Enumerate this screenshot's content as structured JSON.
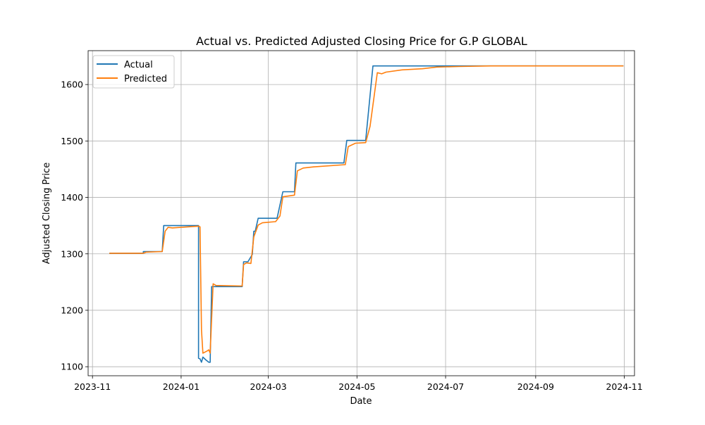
{
  "chart_data": {
    "type": "line",
    "title": "Actual vs. Predicted Adjusted Closing Price for G.P GLOBAL",
    "xlabel": "Date",
    "ylabel": "Adjusted Closing Price",
    "x_is_date": true,
    "xlim": [
      "2023-10-29",
      "2024-11-08"
    ],
    "ylim": [
      1084,
      1660
    ],
    "x_ticks": [
      {
        "value": "2023-11-01",
        "label": "2023-11"
      },
      {
        "value": "2024-01-01",
        "label": "2024-01"
      },
      {
        "value": "2024-03-01",
        "label": "2024-03"
      },
      {
        "value": "2024-05-01",
        "label": "2024-05"
      },
      {
        "value": "2024-07-01",
        "label": "2024-07"
      },
      {
        "value": "2024-09-01",
        "label": "2024-09"
      },
      {
        "value": "2024-11-01",
        "label": "2024-11"
      }
    ],
    "y_ticks": [
      1100,
      1200,
      1300,
      1400,
      1500,
      1600
    ],
    "grid": true,
    "legend_position": "top-left",
    "series": [
      {
        "name": "Actual",
        "color": "#1f77b4",
        "points": [
          [
            "2023-11-13",
            1301
          ],
          [
            "2023-12-06",
            1301
          ],
          [
            "2023-12-06",
            1304
          ],
          [
            "2023-12-19",
            1304
          ],
          [
            "2023-12-20",
            1350
          ],
          [
            "2024-01-13",
            1350
          ],
          [
            "2024-01-13",
            1115
          ],
          [
            "2024-01-14",
            1114
          ],
          [
            "2024-01-15",
            1108
          ],
          [
            "2024-01-16",
            1117
          ],
          [
            "2024-01-18",
            1112
          ],
          [
            "2024-01-20",
            1108
          ],
          [
            "2024-01-21",
            1108
          ],
          [
            "2024-01-22",
            1242
          ],
          [
            "2024-02-12",
            1242
          ],
          [
            "2024-02-13",
            1286
          ],
          [
            "2024-02-16",
            1286
          ],
          [
            "2024-02-19",
            1299
          ],
          [
            "2024-02-20",
            1340
          ],
          [
            "2024-02-21",
            1340
          ],
          [
            "2024-02-23",
            1363
          ],
          [
            "2024-03-07",
            1363
          ],
          [
            "2024-03-11",
            1410
          ],
          [
            "2024-03-19",
            1410
          ],
          [
            "2024-03-20",
            1461
          ],
          [
            "2024-04-22",
            1461
          ],
          [
            "2024-04-24",
            1501
          ],
          [
            "2024-05-07",
            1501
          ],
          [
            "2024-05-12",
            1633
          ],
          [
            "2024-10-31",
            1633
          ]
        ]
      },
      {
        "name": "Predicted",
        "color": "#ff7f0e",
        "points": [
          [
            "2023-11-13",
            1301
          ],
          [
            "2023-12-06",
            1301
          ],
          [
            "2023-12-07",
            1302
          ],
          [
            "2023-12-08",
            1303
          ],
          [
            "2023-12-19",
            1304
          ],
          [
            "2023-12-21",
            1340
          ],
          [
            "2023-12-23",
            1347
          ],
          [
            "2023-12-26",
            1346
          ],
          [
            "2024-01-01",
            1347
          ],
          [
            "2024-01-13",
            1349
          ],
          [
            "2024-01-14",
            1348
          ],
          [
            "2024-01-15",
            1165
          ],
          [
            "2024-01-16",
            1124
          ],
          [
            "2024-01-19",
            1128
          ],
          [
            "2024-01-20",
            1130
          ],
          [
            "2024-01-21",
            1124
          ],
          [
            "2024-01-23",
            1247
          ],
          [
            "2024-01-25",
            1244
          ],
          [
            "2024-02-12",
            1243
          ],
          [
            "2024-02-13",
            1281
          ],
          [
            "2024-02-15",
            1284
          ],
          [
            "2024-02-18",
            1283
          ],
          [
            "2024-02-20",
            1330
          ],
          [
            "2024-02-23",
            1351
          ],
          [
            "2024-02-26",
            1355
          ],
          [
            "2024-03-06",
            1357
          ],
          [
            "2024-03-09",
            1367
          ],
          [
            "2024-03-11",
            1401
          ],
          [
            "2024-03-19",
            1404
          ],
          [
            "2024-03-21",
            1447
          ],
          [
            "2024-03-25",
            1452
          ],
          [
            "2024-04-01",
            1454
          ],
          [
            "2024-04-23",
            1458
          ],
          [
            "2024-04-25",
            1490
          ],
          [
            "2024-04-30",
            1496
          ],
          [
            "2024-05-07",
            1497
          ],
          [
            "2024-05-10",
            1526
          ],
          [
            "2024-05-15",
            1621
          ],
          [
            "2024-05-18",
            1619
          ],
          [
            "2024-05-21",
            1622
          ],
          [
            "2024-06-01",
            1626
          ],
          [
            "2024-06-15",
            1628
          ],
          [
            "2024-06-25",
            1631
          ],
          [
            "2024-07-10",
            1632
          ],
          [
            "2024-08-01",
            1633
          ],
          [
            "2024-10-31",
            1633
          ]
        ]
      }
    ]
  }
}
